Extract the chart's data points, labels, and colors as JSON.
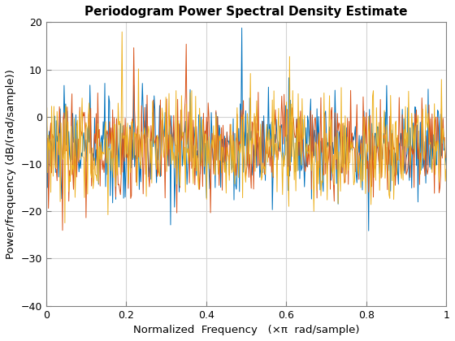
{
  "title": "Periodogram Power Spectral Density Estimate",
  "xlabel": "Normalized  Frequency   (×π  rad/sample)",
  "ylabel": "Power/frequency (dB/(rad/sample))",
  "xlim": [
    0,
    1
  ],
  "ylim": [
    -40,
    20
  ],
  "yticks": [
    -40,
    -30,
    -20,
    -10,
    0,
    10,
    20
  ],
  "xticks": [
    0,
    0.2,
    0.4,
    0.6,
    0.8,
    1.0
  ],
  "colors": [
    "#0072BD",
    "#D95319",
    "#EDB120"
  ],
  "n_points": 512,
  "noise_std": 5.5,
  "base_level": -6.5,
  "linewidth": 0.7,
  "grid_color": "#d3d3d3",
  "background_color": "#ffffff",
  "peaks": [
    {
      "line": 0,
      "freq": 0.49,
      "amp": 26
    },
    {
      "line": 1,
      "freq": 0.22,
      "amp": 25
    },
    {
      "line": 1,
      "freq": 0.35,
      "amp": 24
    },
    {
      "line": 2,
      "freq": 0.19,
      "amp": 26
    }
  ],
  "seeds": [
    10,
    20,
    30
  ]
}
